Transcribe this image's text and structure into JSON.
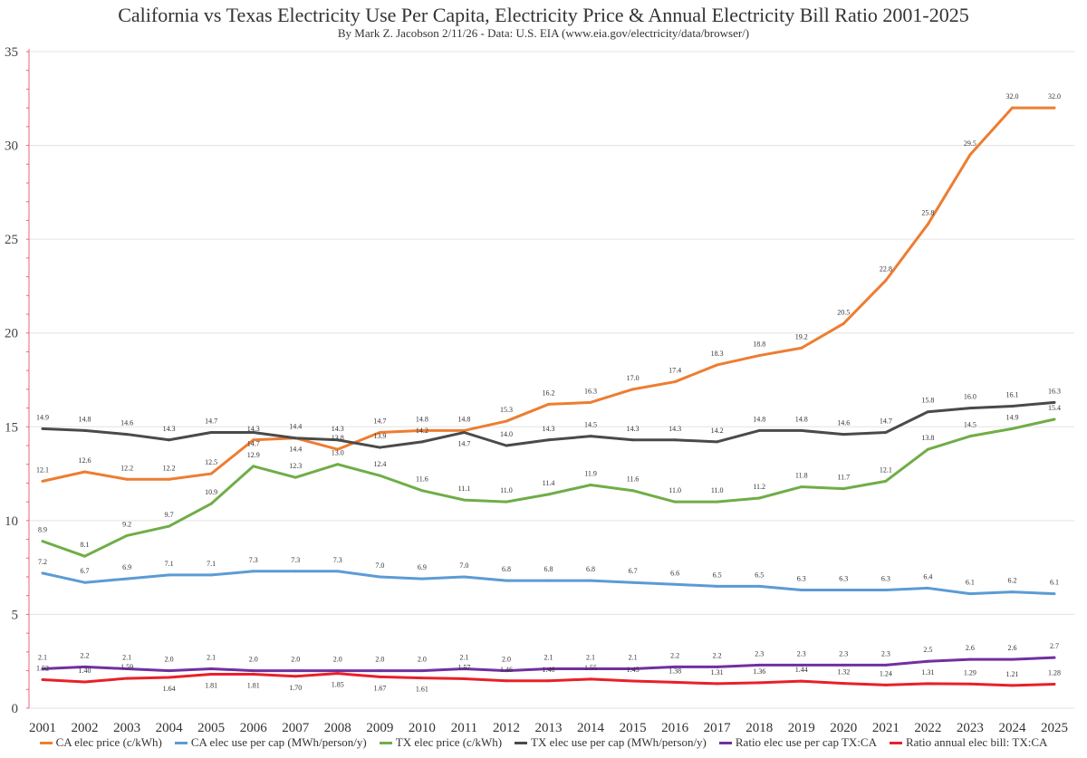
{
  "chart_data": {
    "type": "line",
    "title": "California vs Texas Electricity Use Per Capita, Electricity Price & Annual Electricity Bill Ratio 2001-2025",
    "subtitle": "By Mark Z. Jacobson 2/11/26 - Data: U.S. EIA (www.eia.gov/electricity/data/browser/)",
    "xlabel": "",
    "ylabel": "",
    "ylim": [
      0,
      35
    ],
    "yticks": [
      0,
      5,
      10,
      15,
      20,
      25,
      30,
      35
    ],
    "grid": true,
    "legend_position": "bottom",
    "x": [
      "2001",
      "2002",
      "2003",
      "2004",
      "2005",
      "2006",
      "2007",
      "2008",
      "2009",
      "2010",
      "2011",
      "2012",
      "2013",
      "2014",
      "2015",
      "2016",
      "2017",
      "2018",
      "2019",
      "2020",
      "2021",
      "2022",
      "2023",
      "2024",
      "2025"
    ],
    "series": [
      {
        "name": "CA elec price (c/kWh)",
        "color": "#ED7D31",
        "decimals": 1,
        "values": [
          12.1,
          12.6,
          12.2,
          12.2,
          12.5,
          14.3,
          14.4,
          13.8,
          14.7,
          14.8,
          14.8,
          15.3,
          16.2,
          16.3,
          17.0,
          17.4,
          18.3,
          18.8,
          19.2,
          20.5,
          22.8,
          25.8,
          29.5,
          32.0,
          32.0
        ]
      },
      {
        "name": "CA elec use per cap (MWh/person/y)",
        "color": "#5B9BD5",
        "decimals": 1,
        "values": [
          7.2,
          6.7,
          6.9,
          7.1,
          7.1,
          7.3,
          7.3,
          7.3,
          7.0,
          6.9,
          7.0,
          6.8,
          6.8,
          6.8,
          6.7,
          6.6,
          6.5,
          6.5,
          6.3,
          6.3,
          6.3,
          6.4,
          6.1,
          6.2,
          6.1
        ]
      },
      {
        "name": "TX elec price (c/kWh)",
        "color": "#70AD47",
        "decimals": 1,
        "values": [
          8.9,
          8.1,
          9.2,
          9.7,
          10.9,
          12.9,
          12.3,
          13.0,
          12.4,
          11.6,
          11.1,
          11.0,
          11.4,
          11.9,
          11.6,
          11.0,
          11.0,
          11.2,
          11.8,
          11.7,
          12.1,
          13.8,
          14.5,
          14.9,
          15.4
        ]
      },
      {
        "name": "TX elec use per cap (MWh/person/y)",
        "color": "#4A4A4A",
        "decimals": 1,
        "values": [
          14.9,
          14.8,
          14.6,
          14.3,
          14.7,
          14.7,
          14.4,
          14.3,
          13.9,
          14.2,
          14.7,
          14.0,
          14.3,
          14.5,
          14.3,
          14.3,
          14.2,
          14.8,
          14.8,
          14.6,
          14.7,
          15.8,
          16.0,
          16.1,
          16.3
        ]
      },
      {
        "name": "Ratio elec use per cap TX:CA",
        "color": "#7030A0",
        "decimals": 1,
        "values": [
          2.1,
          2.2,
          2.1,
          2.0,
          2.1,
          2.0,
          2.0,
          2.0,
          2.0,
          2.0,
          2.1,
          2.0,
          2.1,
          2.1,
          2.1,
          2.2,
          2.2,
          2.3,
          2.3,
          2.3,
          2.3,
          2.5,
          2.6,
          2.6,
          2.7
        ]
      },
      {
        "name": "Ratio annual elec bill: TX:CA",
        "color": "#E8202A",
        "decimals": 2,
        "values": [
          1.52,
          1.4,
          1.59,
          1.64,
          1.81,
          1.81,
          1.7,
          1.85,
          1.67,
          1.61,
          1.57,
          1.46,
          1.46,
          1.55,
          1.45,
          1.38,
          1.31,
          1.36,
          1.44,
          1.32,
          1.24,
          1.31,
          1.29,
          1.21,
          1.28
        ]
      }
    ]
  }
}
